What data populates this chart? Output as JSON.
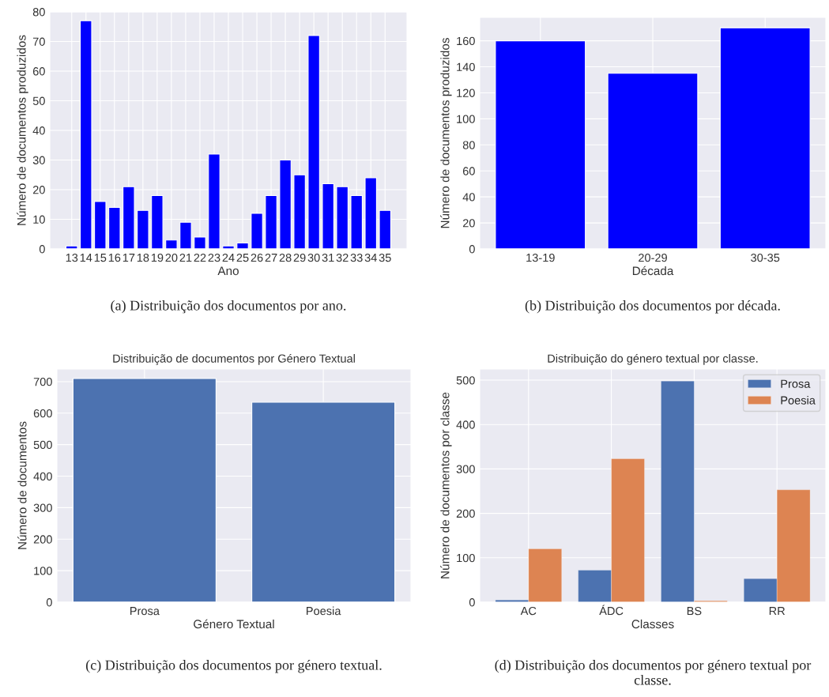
{
  "chart_data": [
    {
      "type": "bar",
      "xlabel": "Ano",
      "ylabel": "Número de documentos produzidos",
      "categories": [
        "13",
        "14",
        "15",
        "16",
        "17",
        "18",
        "19",
        "20",
        "21",
        "22",
        "23",
        "24",
        "25",
        "26",
        "27",
        "28",
        "29",
        "30",
        "31",
        "32",
        "33",
        "34",
        "35"
      ],
      "values": [
        1,
        77,
        16,
        14,
        21,
        13,
        18,
        3,
        9,
        4,
        32,
        1,
        2,
        12,
        18,
        30,
        25,
        72,
        22,
        21,
        18,
        24,
        13
      ],
      "color": "#0000ff",
      "ylim": [
        0,
        80
      ],
      "yticks": [
        0,
        10,
        20,
        30,
        40,
        50,
        60,
        70,
        80
      ],
      "grid": true,
      "annotations": [
        "(a) Distribuição dos documentos por ano."
      ]
    },
    {
      "type": "bar",
      "xlabel": "Década",
      "ylabel": "Número de documentos produzidos",
      "categories": [
        "13-19",
        "20-29",
        "30-35"
      ],
      "values": [
        160,
        135,
        170
      ],
      "color": "#0000ff",
      "ylim": [
        0,
        178
      ],
      "yticks": [
        0,
        20,
        40,
        60,
        80,
        100,
        120,
        140,
        160
      ],
      "grid": true,
      "annotations": [
        "(b) Distribuição dos documentos por década."
      ]
    },
    {
      "type": "bar",
      "title": "Distribuição de documentos por Género Textual",
      "xlabel": "Género Textual",
      "ylabel": "Número de documentos",
      "categories": [
        "Prosa",
        "Poesia"
      ],
      "values": [
        710,
        635
      ],
      "color": "#4c72b0",
      "ylim": [
        0,
        740
      ],
      "yticks": [
        0,
        100,
        200,
        300,
        400,
        500,
        600,
        700
      ],
      "grid": true,
      "annotations": [
        "(c) Distribuição dos documentos por género textual."
      ]
    },
    {
      "type": "bar",
      "title": "Distribuição do género textual por classe.",
      "xlabel": "Classes",
      "ylabel": "Número de documentos por classe",
      "categories": [
        "AC",
        "ÁDC",
        "BS",
        "RR"
      ],
      "series": [
        {
          "name": "Prosa",
          "color": "#4c72b0",
          "values": [
            5,
            72,
            498,
            53
          ]
        },
        {
          "name": "Poesia",
          "color": "#dd8452",
          "values": [
            120,
            323,
            3,
            253
          ]
        }
      ],
      "ylim": [
        0,
        525
      ],
      "yticks": [
        0,
        100,
        200,
        300,
        400,
        500
      ],
      "grid": true,
      "legend": "top right",
      "annotations": [
        "(d) Distribuição dos documentos por género textual por classe."
      ]
    }
  ]
}
